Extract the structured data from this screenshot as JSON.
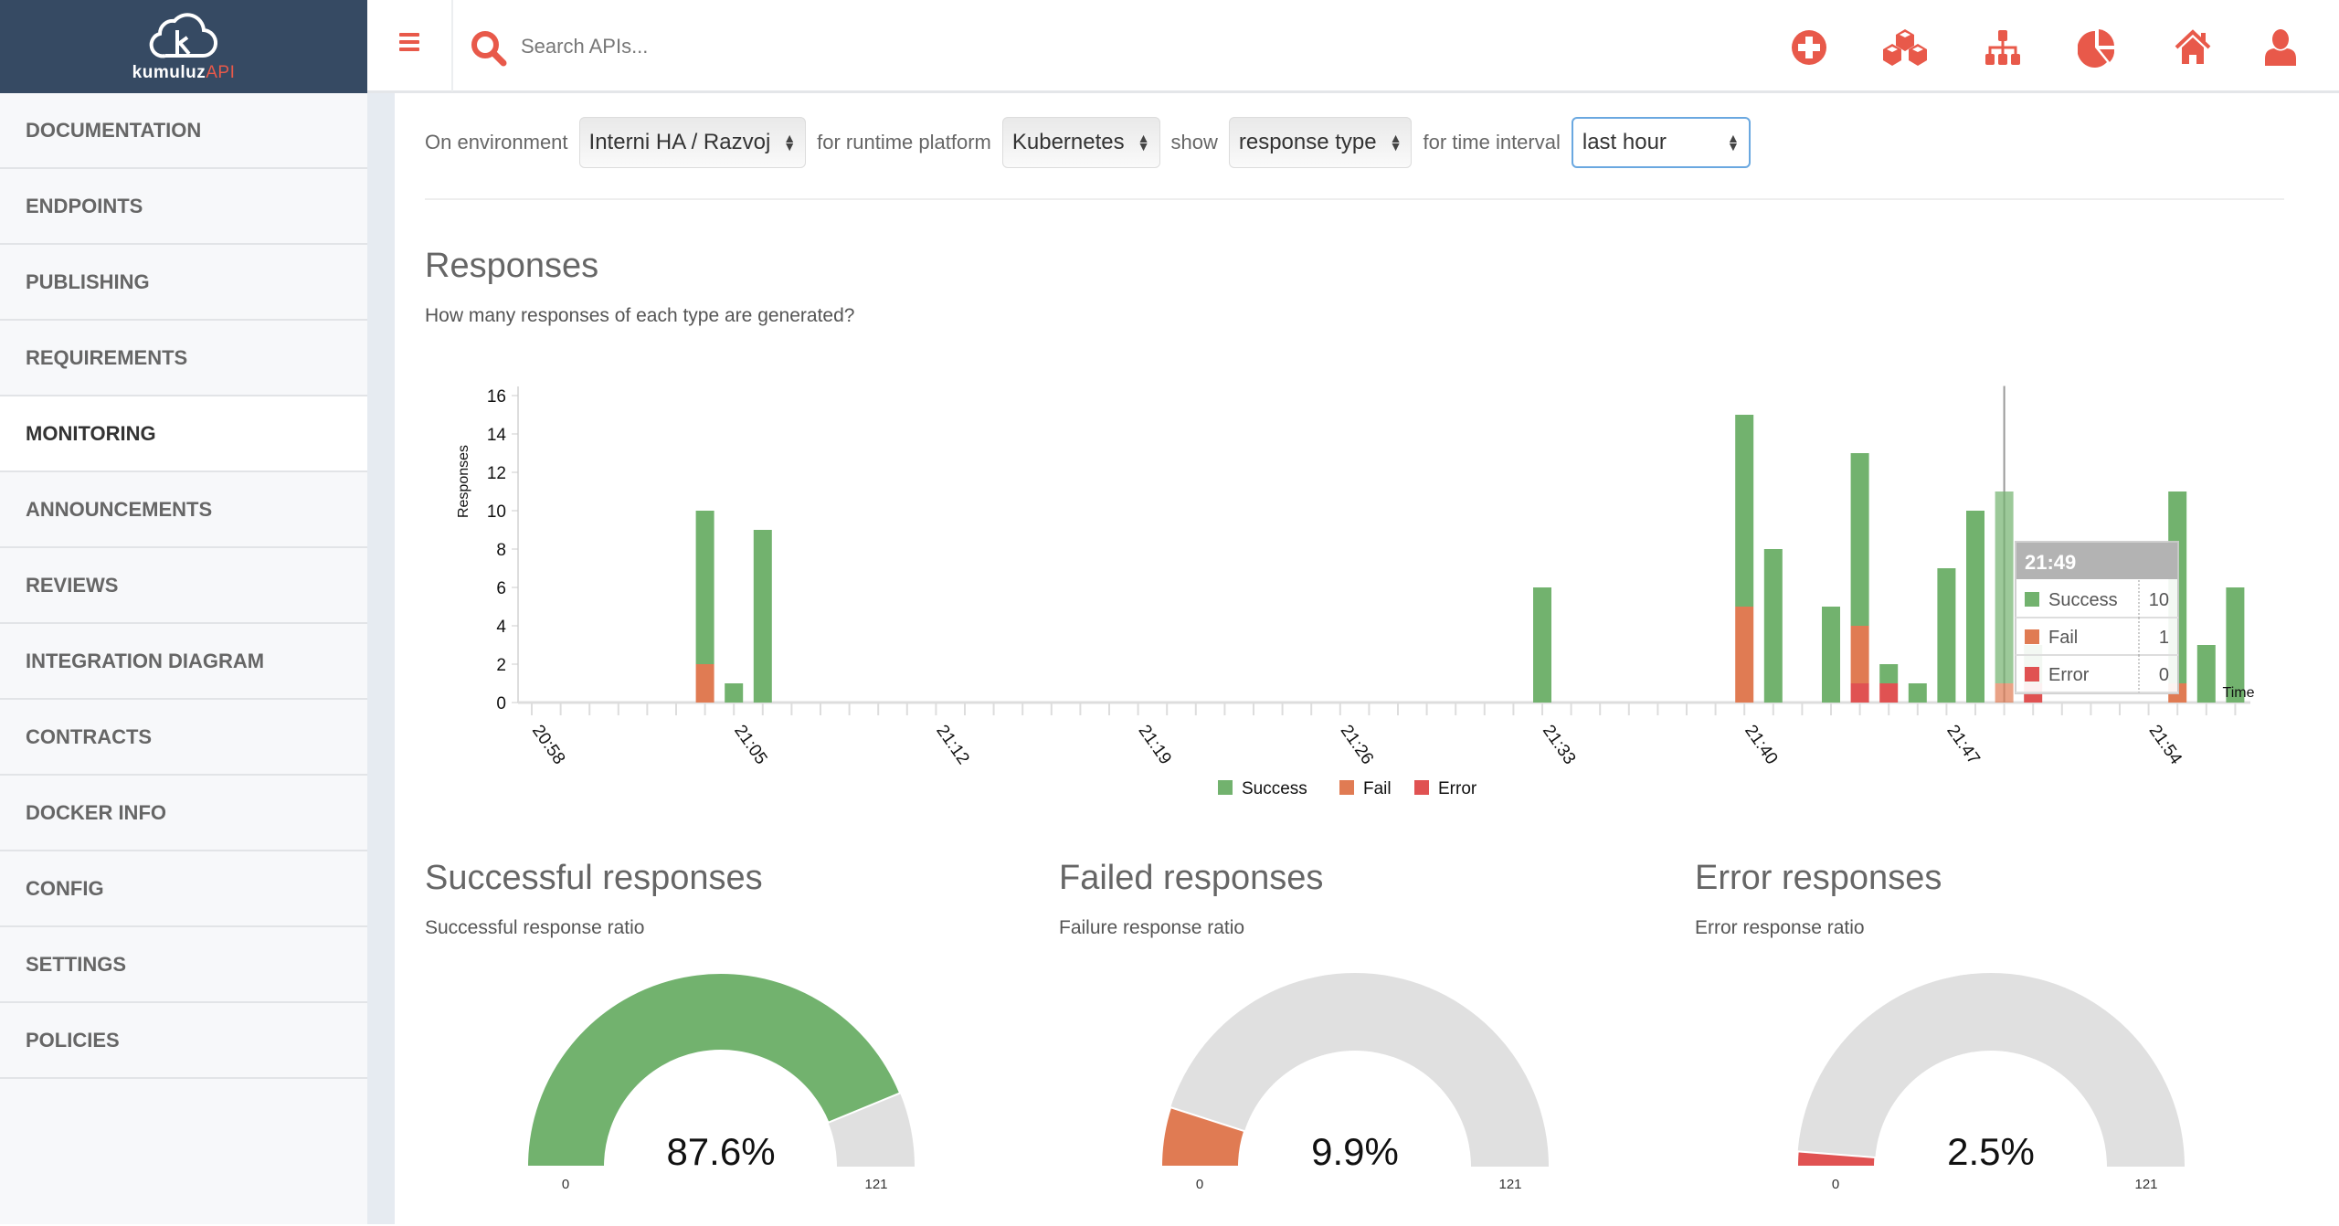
{
  "brand": {
    "name": "kumuluz",
    "suffix": "API"
  },
  "search": {
    "placeholder": "Search APIs..."
  },
  "toolbar": {
    "icons": [
      "plus-circle-icon",
      "cubes-icon",
      "sitemap-icon",
      "pie-chart-icon",
      "home-icon",
      "user-icon"
    ]
  },
  "colors": {
    "accent": "#e8594a",
    "success": "#72b26e",
    "fail": "#e07b53",
    "error": "#e05252",
    "gauge_bg": "#e0e0e0",
    "sidebar_header": "#364a63"
  },
  "sidebar": {
    "items": [
      {
        "label": "DOCUMENTATION"
      },
      {
        "label": "ENDPOINTS"
      },
      {
        "label": "PUBLISHING"
      },
      {
        "label": "REQUIREMENTS"
      },
      {
        "label": "MONITORING",
        "active": true
      },
      {
        "label": "ANNOUNCEMENTS"
      },
      {
        "label": "REVIEWS"
      },
      {
        "label": "INTEGRATION DIAGRAM"
      },
      {
        "label": "CONTRACTS"
      },
      {
        "label": "DOCKER INFO"
      },
      {
        "label": "CONFIG"
      },
      {
        "label": "SETTINGS"
      },
      {
        "label": "POLICIES"
      }
    ]
  },
  "filters": {
    "env_label": "On environment",
    "env_value": "Interni HA / Razvoj",
    "platform_label": "for runtime platform",
    "platform_value": "Kubernetes",
    "show_label": "show",
    "show_value": "response type",
    "interval_label": "for time interval",
    "interval_value": "last hour"
  },
  "responses": {
    "title": "Responses",
    "subtitle": "How many responses of each type are generated?"
  },
  "chart_data": {
    "type": "bar",
    "stacked": true,
    "ylabel": "Responses",
    "xlabel": "Time",
    "ylim": [
      0,
      16
    ],
    "yticks": [
      0,
      2,
      4,
      6,
      8,
      10,
      12,
      14,
      16
    ],
    "xrange": [
      "20:58",
      "21:57"
    ],
    "xticks": [
      "20:58",
      "21:05",
      "21:12",
      "21:19",
      "21:26",
      "21:33",
      "21:40",
      "21:47",
      "21:54"
    ],
    "series_names": [
      "Success",
      "Fail",
      "Error"
    ],
    "legend": "bottom",
    "bars": [
      {
        "time": "21:04",
        "success": 8,
        "fail": 2,
        "error": 0
      },
      {
        "time": "21:05",
        "success": 1,
        "fail": 0,
        "error": 0
      },
      {
        "time": "21:06",
        "success": 9,
        "fail": 0,
        "error": 0
      },
      {
        "time": "21:33",
        "success": 6,
        "fail": 0,
        "error": 0
      },
      {
        "time": "21:40",
        "success": 10,
        "fail": 5,
        "error": 0
      },
      {
        "time": "21:41",
        "success": 8,
        "fail": 0,
        "error": 0
      },
      {
        "time": "21:43",
        "success": 5,
        "fail": 0,
        "error": 0
      },
      {
        "time": "21:44",
        "success": 9,
        "fail": 3,
        "error": 1
      },
      {
        "time": "21:45",
        "success": 1,
        "fail": 0,
        "error": 1
      },
      {
        "time": "21:46",
        "success": 1,
        "fail": 0,
        "error": 0
      },
      {
        "time": "21:47",
        "success": 7,
        "fail": 0,
        "error": 0
      },
      {
        "time": "21:48",
        "success": 10,
        "fail": 0,
        "error": 0
      },
      {
        "time": "21:49",
        "success": 10,
        "fail": 1,
        "error": 0
      },
      {
        "time": "21:50",
        "success": 2,
        "fail": 0,
        "error": 1
      },
      {
        "time": "21:55",
        "success": 10,
        "fail": 1,
        "error": 0
      },
      {
        "time": "21:56",
        "success": 3,
        "fail": 0,
        "error": 0
      },
      {
        "time": "21:57",
        "success": 6,
        "fail": 0,
        "error": 0
      }
    ],
    "tooltip": {
      "time": "21:49",
      "rows": [
        {
          "name": "Success",
          "value": "10"
        },
        {
          "name": "Fail",
          "value": "1"
        },
        {
          "name": "Error",
          "value": "0"
        }
      ]
    }
  },
  "gauges": [
    {
      "title": "Successful responses",
      "subtitle": "Successful response ratio",
      "value_label": "87.6%",
      "fraction": 0.876,
      "min": "0",
      "max": "121",
      "color": "#72b26e"
    },
    {
      "title": "Failed responses",
      "subtitle": "Failure response ratio",
      "value_label": "9.9%",
      "fraction": 0.099,
      "min": "0",
      "max": "121",
      "color": "#e07b53"
    },
    {
      "title": "Error responses",
      "subtitle": "Error response ratio",
      "value_label": "2.5%",
      "fraction": 0.025,
      "min": "0",
      "max": "121",
      "color": "#e05252"
    }
  ]
}
